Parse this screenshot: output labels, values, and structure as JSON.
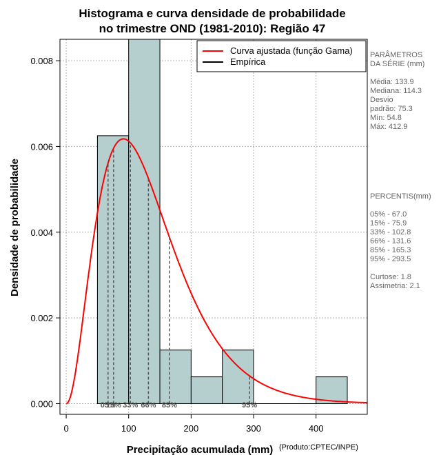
{
  "chart_data": {
    "type": "bar",
    "title_line1": "Histograma e curva densidade de probabilidade",
    "title_line2": "no trimestre OND (1981-2010): Região 47",
    "xlabel": "Precipitação acumulada (mm)",
    "ylabel": "Densidade de probabilidade",
    "credit": "(Produto:CPTEC/INPE)",
    "xlim": [
      -10,
      482
    ],
    "ylim": [
      -0.00025,
      0.0085
    ],
    "x_ticks": [
      0,
      100,
      200,
      300,
      400
    ],
    "x_tick_labels": [
      "0",
      "100",
      "200",
      "300",
      "400"
    ],
    "y_ticks": [
      0.0,
      0.002,
      0.004,
      0.006,
      0.008
    ],
    "y_tick_labels": [
      "0.000",
      "0.002",
      "0.004",
      "0.006",
      "0.008"
    ],
    "grid": true,
    "histogram_bins": [
      {
        "x0": 50,
        "x1": 100,
        "density": 0.00625
      },
      {
        "x0": 100,
        "x1": 150,
        "density": 0.0085
      },
      {
        "x0": 150,
        "x1": 200,
        "density": 0.00125
      },
      {
        "x0": 200,
        "x1": 250,
        "density": 0.000625
      },
      {
        "x0": 250,
        "x1": 300,
        "density": 0.00125
      },
      {
        "x0": 300,
        "x1": 350,
        "density": 0.0
      },
      {
        "x0": 350,
        "x1": 400,
        "density": 0.0
      },
      {
        "x0": 400,
        "x1": 450,
        "density": 0.000625
      }
    ],
    "gamma_fit": {
      "shape": 3.17,
      "scale": 42.2
    },
    "percentile_markers": [
      {
        "label": "05%",
        "x": 67.0
      },
      {
        "label": "15%",
        "x": 75.9
      },
      {
        "label": "33%",
        "x": 102.8
      },
      {
        "label": "66%",
        "x": 131.6
      },
      {
        "label": "85%",
        "x": 165.3
      },
      {
        "label": "95%",
        "x": 293.5
      }
    ],
    "legend": {
      "placement": "top-right",
      "entries": [
        {
          "label": "Curva ajustada (função Gama)",
          "color": "#ff0000"
        },
        {
          "label": "Empírica",
          "color": "#000000"
        }
      ]
    },
    "colors": {
      "bar_fill": "#b5cece",
      "curve": "#ff0000",
      "grid": "#b0b0b0",
      "marker": "#555555"
    }
  },
  "side_panel": {
    "params_title_1": "PARÂMETROS",
    "params_title_2": " DA SÉRIE (mm)",
    "media": "Média:  133.9",
    "mediana": "Mediana:  114.3",
    "desvio_1": "Desvio",
    "desvio_2": "padrão:  75.3",
    "min": "Mín:  54.8",
    "max": "Máx:  412.9",
    "percentis_title": " PERCENTIS(mm)",
    "p05": "05% -  67.0",
    "p15": "15% -  75.9",
    "p33": "33% -  102.8",
    "p66": "66% -  131.6",
    "p85": "85% -  165.3",
    "p95": "95% -  293.5",
    "curtose": "Curtose:  1.8",
    "assimetria": "Assimetria:  2.1"
  }
}
